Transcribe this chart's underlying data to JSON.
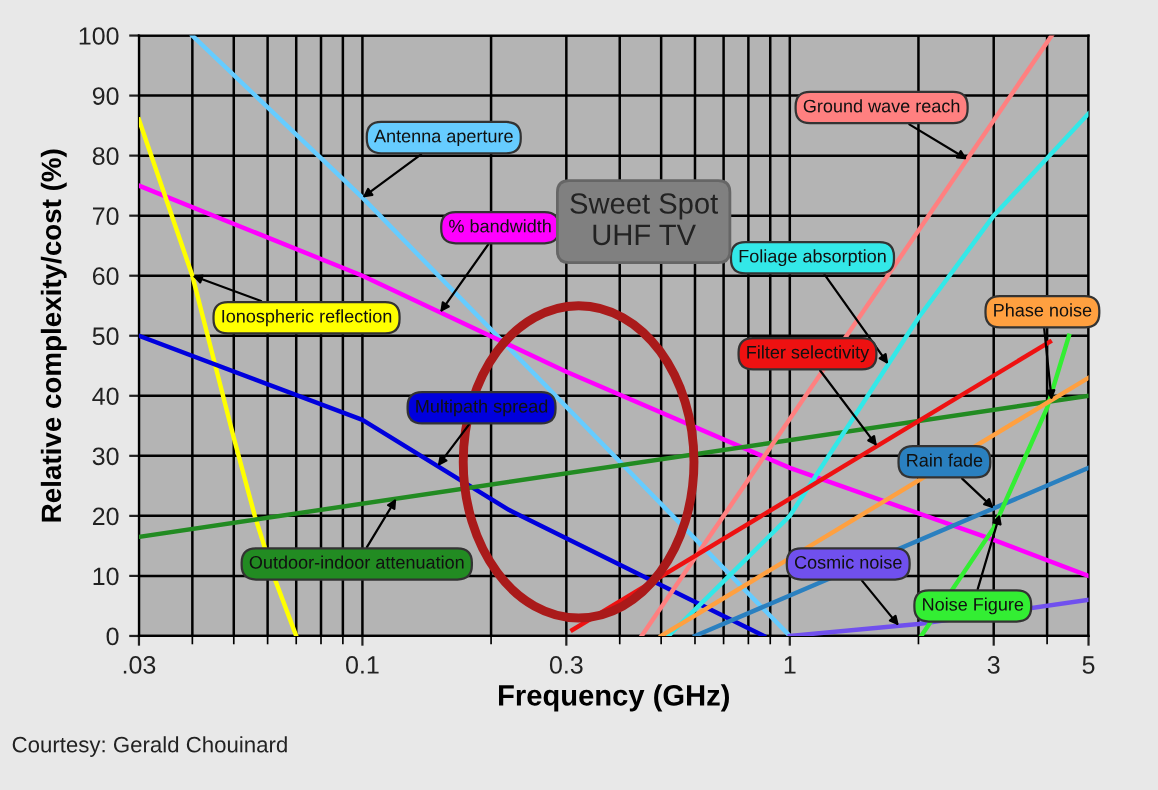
{
  "chart_data": {
    "type": "line",
    "xlabel": "Frequency (GHz)",
    "ylabel": "Relative complexity/cost (%)",
    "log": "x",
    "grid": true,
    "xlim": [
      0.03,
      5
    ],
    "ylim": [
      0,
      100
    ],
    "xticks": [
      {
        "value": 0.03,
        "label": ".03"
      },
      0.1,
      0.3,
      1,
      3,
      5
    ],
    "yticks": [
      0,
      10,
      20,
      30,
      40,
      50,
      60,
      70,
      80,
      90,
      100
    ],
    "series": [
      {
        "name": "Antenna aperture",
        "color": "#66ccff",
        "x": [
          0.04,
          0.1,
          1
        ],
        "values": [
          100,
          73,
          0
        ]
      },
      {
        "name": "% bandwidth",
        "color": "#ff00ff",
        "x": [
          0.03,
          0.1,
          0.3,
          1,
          3,
          5
        ],
        "values": [
          75,
          60,
          44,
          28,
          16,
          10
        ]
      },
      {
        "name": "Ionospheric reflection",
        "color": "#ffff00",
        "x": [
          0.03,
          0.04,
          0.05,
          0.056,
          0.062,
          0.07
        ],
        "values": [
          86,
          60,
          33,
          20,
          10,
          0
        ]
      },
      {
        "name": "Multipath spread",
        "color": "#0000dd",
        "x": [
          0.03,
          0.1,
          0.22,
          0.87
        ],
        "values": [
          50,
          36,
          21,
          0
        ]
      },
      {
        "name": "Outdoor-indoor attenuation",
        "color": "#228b22",
        "x": [
          0.03,
          5
        ],
        "values": [
          16.5,
          40
        ]
      },
      {
        "name": "Ground wave reach",
        "color": "#ff8080",
        "x": [
          0.45,
          4.1
        ],
        "values": [
          0,
          100
        ]
      },
      {
        "name": "Foliage absorption",
        "color": "#33e8e8",
        "x": [
          0.52,
          1,
          2,
          3,
          5
        ],
        "values": [
          0,
          20,
          53,
          70,
          87
        ]
      },
      {
        "name": "Filter selectivity",
        "color": "#ee1111",
        "x": [
          0.31,
          4.06
        ],
        "values": [
          1,
          49
        ]
      },
      {
        "name": "Rain fade",
        "color": "#2a80c0",
        "x": [
          0.6,
          5
        ],
        "values": [
          0,
          28
        ]
      },
      {
        "name": "Cosmic noise",
        "color": "#7050ee",
        "x": [
          1,
          2,
          5
        ],
        "values": [
          0,
          2,
          6
        ]
      },
      {
        "name": "Noise Figure",
        "color": "#33ee33",
        "x": [
          2.03,
          3,
          4,
          4.5
        ],
        "values": [
          0,
          18,
          38,
          50
        ]
      },
      {
        "name": "Phase noise",
        "color": "#ffa040",
        "x": [
          0.5,
          5
        ],
        "values": [
          0,
          43
        ]
      }
    ],
    "annotations": [
      "Sweet Spot\nUHF TV",
      "Courtesy: Gerald Chouinard"
    ]
  }
}
